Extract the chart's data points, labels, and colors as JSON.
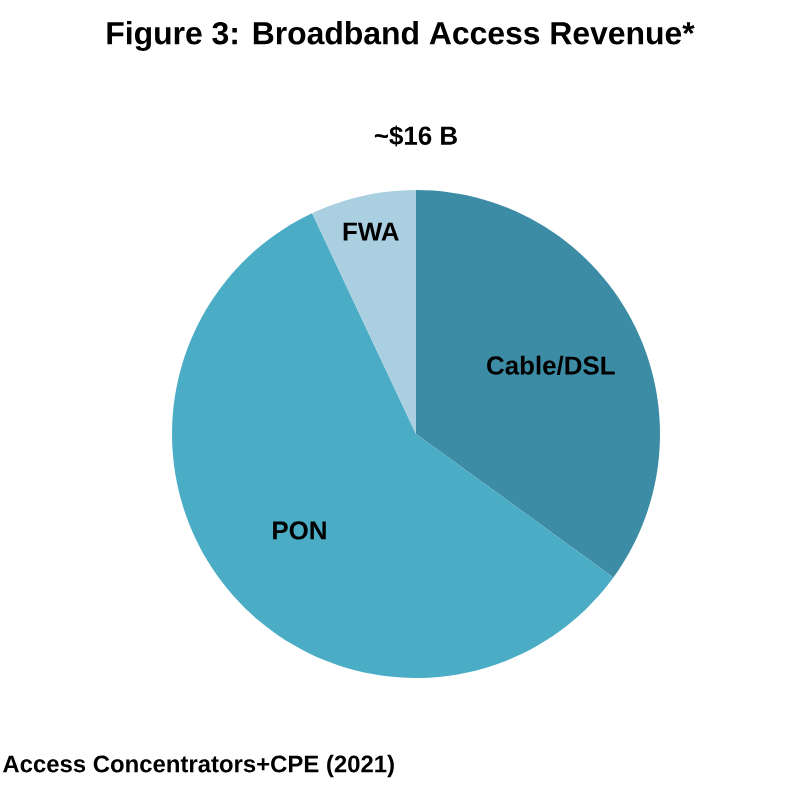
{
  "chart_data": {
    "type": "pie",
    "title": "Figure 3: Broadband Access Revenue*",
    "subtitle": "~$16 B",
    "categories": [
      "Cable/DSL",
      "PON",
      "FWA"
    ],
    "values": [
      35,
      58,
      7
    ],
    "colors": [
      "#3d8ca5",
      "#4bacc6",
      "#a9cfe0"
    ],
    "annotations": [
      "Access Concentrators+CPE (2021)"
    ]
  }
}
